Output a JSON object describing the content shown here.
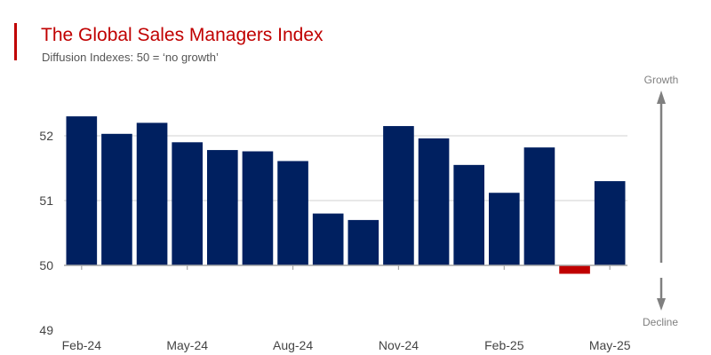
{
  "header": {
    "title": "The Global Sales Managers Index",
    "subtitle": "Diffusion Indexes: 50 = ‘no growth’"
  },
  "colors": {
    "accent": "#c00000",
    "positive_bar": "#002060",
    "negative_bar": "#c00000",
    "arrow": "#808080"
  },
  "indicator": {
    "up_label": "Growth",
    "down_label": "Decline"
  },
  "chart_data": {
    "type": "bar",
    "baseline": 50,
    "ylim": [
      49,
      53
    ],
    "yticks": [
      49,
      50,
      51,
      52
    ],
    "grid": true,
    "x_tick_labels": [
      "Feb-24",
      "May-24",
      "Aug-24",
      "Nov-24",
      "Feb-25",
      "May-25"
    ],
    "x_tick_every": 3,
    "categories": [
      "Feb-24",
      "Mar-24",
      "Apr-24",
      "May-24",
      "Jun-24",
      "Jul-24",
      "Aug-24",
      "Sep-24",
      "Oct-24",
      "Nov-24",
      "Dec-24",
      "Jan-25",
      "Feb-25",
      "Mar-25",
      "Apr-25",
      "May-25"
    ],
    "values": [
      52.3,
      52.03,
      52.2,
      51.9,
      51.78,
      51.76,
      51.61,
      50.8,
      50.7,
      52.15,
      51.96,
      51.55,
      51.12,
      51.82,
      49.87,
      51.3
    ]
  }
}
